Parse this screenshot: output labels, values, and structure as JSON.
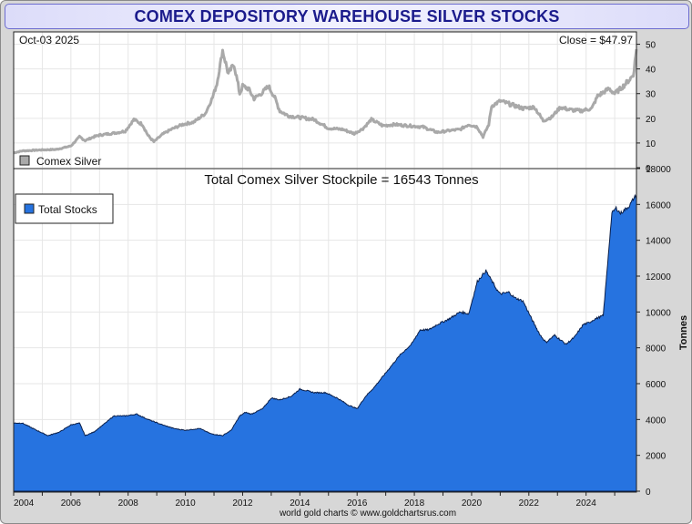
{
  "header": {
    "title": "COMEX DEPOSITORY WAREHOUSE SILVER STOCKS"
  },
  "footer": {
    "credit": "world gold charts © www.goldchartsrus.com"
  },
  "colors": {
    "stocks_fill": "#2673e0",
    "price_line": "#a9a9a9",
    "title_text": "#1b1b8c"
  },
  "chart_data": [
    {
      "type": "line",
      "title": "",
      "date_label": "Oct-03  2025",
      "close_label": "Close = $47.97",
      "legend": "Comex Silver",
      "xlim": [
        2004.0,
        2025.76
      ],
      "ylim": [
        0,
        55
      ],
      "yticks": [
        0,
        10,
        20,
        30,
        40,
        50
      ],
      "x": [
        2004.0,
        2004.3,
        2005.0,
        2005.5,
        2006.0,
        2006.3,
        2006.5,
        2006.8,
        2007.0,
        2007.5,
        2007.9,
        2008.2,
        2008.5,
        2008.7,
        2008.9,
        2009.2,
        2009.5,
        2009.9,
        2010.3,
        2010.7,
        2010.95,
        2011.1,
        2011.3,
        2011.5,
        2011.7,
        2011.9,
        2012.0,
        2012.2,
        2012.4,
        2012.7,
        2012.9,
        2013.1,
        2013.3,
        2013.6,
        2013.9,
        2014.5,
        2015.0,
        2015.5,
        2015.9,
        2016.2,
        2016.5,
        2016.9,
        2017.3,
        2017.8,
        2018.3,
        2018.8,
        2019.2,
        2019.6,
        2019.9,
        2020.2,
        2020.4,
        2020.6,
        2020.7,
        2021.0,
        2021.4,
        2021.8,
        2022.2,
        2022.5,
        2022.8,
        2023.1,
        2023.4,
        2023.8,
        2024.2,
        2024.4,
        2024.8,
        2025.0,
        2025.3,
        2025.5,
        2025.65,
        2025.76
      ],
      "values": [
        6.0,
        6.8,
        7.2,
        7.4,
        8.8,
        12.5,
        11.0,
        12.5,
        13.2,
        14.0,
        14.8,
        19.5,
        17.5,
        13.0,
        10.5,
        13.5,
        15.5,
        17.5,
        18.5,
        22.0,
        28.5,
        34.0,
        47.5,
        38.0,
        42.0,
        30.0,
        33.0,
        32.0,
        28.0,
        30.5,
        33.0,
        29.0,
        23.0,
        21.0,
        20.5,
        19.5,
        16.0,
        15.5,
        13.8,
        15.8,
        19.5,
        17.0,
        17.5,
        17.0,
        16.5,
        14.3,
        15.0,
        15.5,
        17.5,
        16.5,
        12.5,
        17.5,
        25.0,
        27.0,
        25.5,
        24.0,
        24.5,
        19.0,
        20.5,
        24.5,
        23.5,
        23.0,
        24.0,
        29.0,
        32.0,
        30.0,
        33.0,
        35.5,
        37.5,
        47.97
      ]
    },
    {
      "type": "area",
      "title": "Total Comex Silver Stockpile = 16543 Tonnes",
      "legend": "Total Stocks",
      "ylabel": "Tonnes",
      "xlim": [
        2004.0,
        2025.76
      ],
      "ylim": [
        0,
        18000
      ],
      "yticks": [
        0,
        2000,
        4000,
        6000,
        8000,
        10000,
        12000,
        14000,
        16000,
        18000
      ],
      "xticks": [
        "2004",
        "2006",
        "2008",
        "2010",
        "2012",
        "2014",
        "2016",
        "2018",
        "2020",
        "2022",
        "2024"
      ],
      "x": [
        2004.0,
        2004.3,
        2004.8,
        2005.2,
        2005.6,
        2006.0,
        2006.3,
        2006.5,
        2006.8,
        2007.2,
        2007.5,
        2007.9,
        2008.3,
        2008.7,
        2009.2,
        2009.6,
        2010.0,
        2010.5,
        2010.9,
        2011.3,
        2011.6,
        2011.9,
        2012.1,
        2012.3,
        2012.7,
        2013.0,
        2013.3,
        2013.7,
        2014.0,
        2014.5,
        2014.9,
        2015.3,
        2015.7,
        2016.0,
        2016.3,
        2016.6,
        2017.0,
        2017.5,
        2017.9,
        2018.2,
        2018.5,
        2018.8,
        2019.2,
        2019.6,
        2019.9,
        2020.2,
        2020.5,
        2020.9,
        2021.0,
        2021.3,
        2021.5,
        2021.8,
        2022.1,
        2022.4,
        2022.6,
        2022.9,
        2023.3,
        2023.6,
        2023.9,
        2024.1,
        2024.3,
        2024.6,
        2024.9,
        2025.05,
        2025.2,
        2025.5,
        2025.65,
        2025.76
      ],
      "values": [
        3800,
        3800,
        3400,
        3100,
        3300,
        3700,
        3800,
        3100,
        3300,
        3800,
        4200,
        4200,
        4300,
        4000,
        3700,
        3500,
        3400,
        3500,
        3200,
        3100,
        3400,
        4200,
        4400,
        4300,
        4600,
        5200,
        5100,
        5300,
        5700,
        5500,
        5500,
        5200,
        4800,
        4600,
        5300,
        5800,
        6600,
        7600,
        8200,
        9000,
        9000,
        9300,
        9600,
        10000,
        9900,
        11700,
        12300,
        11200,
        11000,
        11100,
        10800,
        10600,
        9600,
        8700,
        8300,
        8700,
        8200,
        8600,
        9300,
        9400,
        9600,
        9800,
        15500,
        15800,
        15500,
        15900,
        16300,
        16543
      ]
    }
  ]
}
